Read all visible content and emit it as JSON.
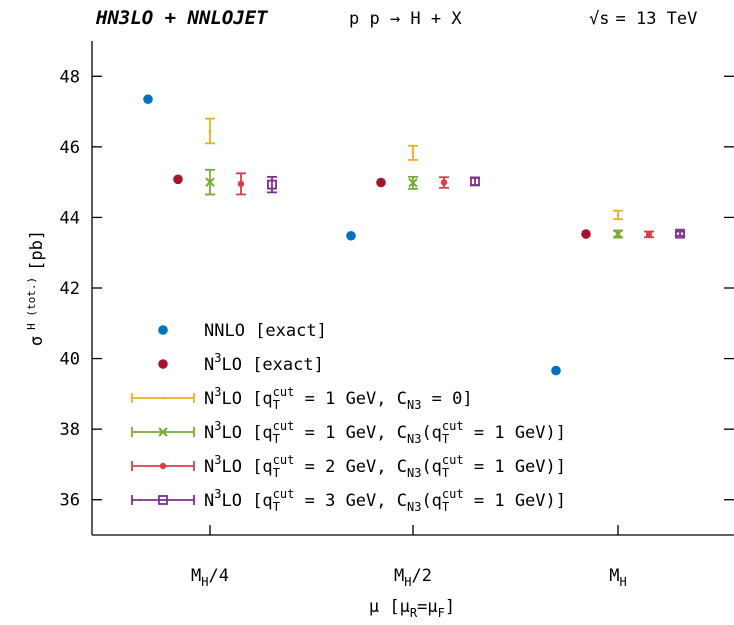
{
  "header": {
    "left": "HN3LO + NNLOJET",
    "process": "p p → H + X",
    "energy_sqrt": "√s",
    "energy_rest": "= 13 TeV"
  },
  "chart_data": {
    "type": "scatter",
    "title": "",
    "xlabel": "μ [μR=μF]",
    "ylabel": "σ H (tot.) [pb]",
    "ylim": [
      35,
      49
    ],
    "y_ticks": [
      36,
      38,
      40,
      42,
      44,
      46,
      48
    ],
    "categories": [
      "MH/4",
      "MH/2",
      "MH"
    ],
    "grid": false,
    "legend_position": "bottom-left",
    "series": [
      {
        "name": "NNLO [exact]",
        "legend_label": {
          "pre": "NNLO [exact]"
        },
        "marker": "circle",
        "color": "#0072bd",
        "values": [
          47.35,
          43.48,
          39.66
        ],
        "errors": [
          null,
          null,
          null
        ]
      },
      {
        "name": "N3LO [exact]",
        "legend_label": {
          "pre": "N",
          "sup": "3",
          "post": "LO [exact]"
        },
        "marker": "circle",
        "color": "#a2142f",
        "values": [
          45.08,
          44.99,
          43.53
        ],
        "errors": [
          null,
          null,
          null
        ]
      },
      {
        "name": "N3LO [qTcut = 1 GeV, CN3 = 0]",
        "legend_label": {
          "pre": "N",
          "sup": "3",
          "post": "LO [q",
          "cut_sup": "cut",
          "cut_sub": "T",
          "mid": " = 1 GeV, C",
          "n3_sub": "N3",
          "tail": " = 0]"
        },
        "marker": "bar",
        "color": "#edb120",
        "values": [
          46.45,
          45.83,
          44.07
        ],
        "errors": [
          0.35,
          0.2,
          0.12
        ]
      },
      {
        "name": "N3LO [qTcut = 1 GeV, CN3(qTcut = 1 GeV)]",
        "legend_label": {
          "pre": "N",
          "sup": "3",
          "post": "LO [q",
          "cut_sup": "cut",
          "cut_sub": "T",
          "mid": " = 1 GeV, C",
          "n3_sub": "N3",
          "tail": "(q",
          "cut2_sup": "cut",
          "cut2_sub": "T",
          "tail2": " = 1 GeV)]"
        },
        "marker": "cross",
        "color": "#77ac30",
        "values": [
          45.0,
          44.98,
          43.53
        ],
        "errors": [
          0.35,
          0.17,
          0.1
        ]
      },
      {
        "name": "N3LO [qTcut = 2 GeV, CN3(qTcut = 1 GeV)]",
        "legend_label": {
          "pre": "N",
          "sup": "3",
          "post": "LO [q",
          "cut_sup": "cut",
          "cut_sub": "T",
          "mid": " = 2 GeV, C",
          "n3_sub": "N3",
          "tail": "(q",
          "cut2_sup": "cut",
          "cut2_sub": "T",
          "tail2": " = 1 GeV)]"
        },
        "marker": "circle",
        "color": "#d43f4a",
        "values": [
          44.95,
          44.99,
          43.52
        ],
        "errors": [
          0.3,
          0.15,
          0.08
        ]
      },
      {
        "name": "N3LO [qTcut = 3 GeV, CN3(qTcut = 1 GeV)]",
        "legend_label": {
          "pre": "N",
          "sup": "3",
          "post": "LO [q",
          "cut_sup": "cut",
          "cut_sub": "T",
          "mid": " = 3 GeV, C",
          "n3_sub": "N3",
          "tail": "(q",
          "cut2_sup": "cut",
          "cut2_sub": "T",
          "tail2": " = 1 GeV)]"
        },
        "marker": "square",
        "color": "#7e2f8e",
        "values": [
          44.93,
          45.02,
          43.54
        ],
        "errors": [
          0.22,
          0.1,
          0.06
        ]
      }
    ]
  }
}
